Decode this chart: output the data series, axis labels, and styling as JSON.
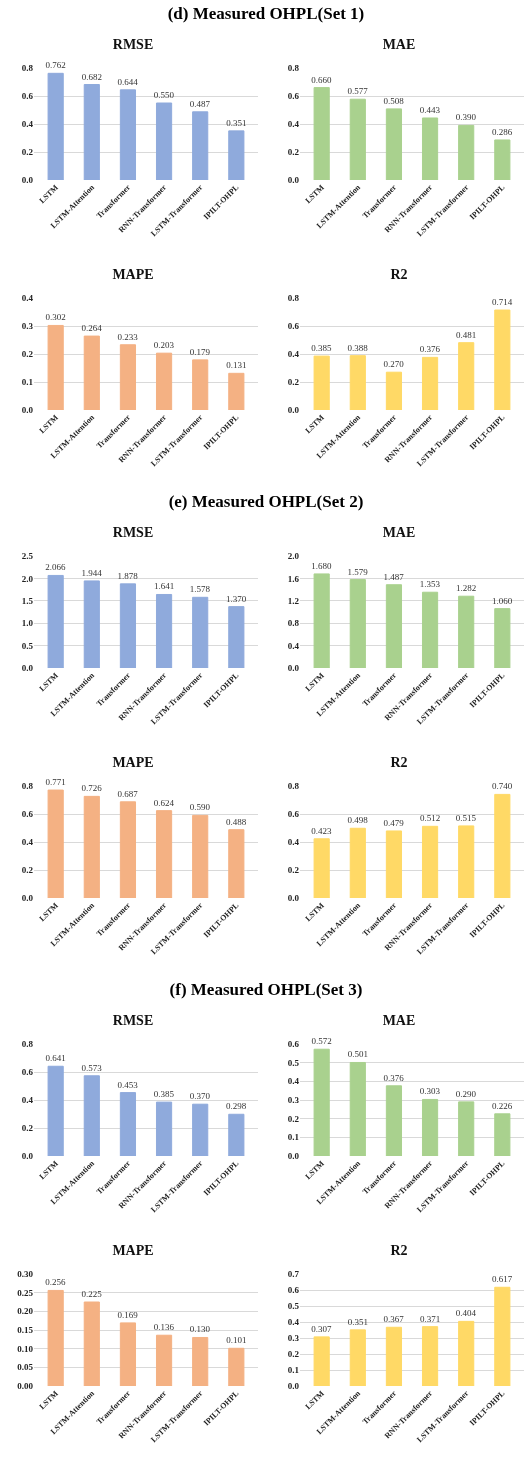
{
  "chart_data": [
    {
      "type": "other",
      "title": "(d) Measured OHPL(Set 1)"
    },
    {
      "type": "bar",
      "title": "RMSE",
      "categories": [
        "LSTM",
        "LSTM-Attention",
        "Transformer",
        "RNN-Transformer",
        "LSTM-Transformer",
        "IPILT-OHPL"
      ],
      "values": [
        0.762,
        0.682,
        0.644,
        0.55,
        0.487,
        0.351
      ],
      "value_labels": [
        "0.762",
        "0.682",
        "0.644",
        "0.550",
        "0.487",
        "0.351"
      ],
      "color": "#8faadc",
      "ylim": [
        0,
        0.8
      ],
      "yticks": [
        {
          "value": 0,
          "label": "0.0"
        },
        0.2,
        0.4,
        0.6,
        0.8
      ],
      "grid": "y"
    },
    {
      "type": "bar",
      "title": "MAE",
      "categories": [
        "LSTM",
        "LSTM-Attention",
        "Transformer",
        "RNN-Transformer",
        "LSTM-Transformer",
        "IPILT-OHPL"
      ],
      "values": [
        0.66,
        0.577,
        0.508,
        0.443,
        0.39,
        0.286
      ],
      "value_labels": [
        "0.660",
        "0.577",
        "0.508",
        "0.443",
        "0.390",
        "0.286"
      ],
      "color": "#a9d18e",
      "ylim": [
        0,
        0.8
      ],
      "yticks": [
        {
          "value": 0,
          "label": "0.0"
        },
        0.2,
        0.4,
        0.6,
        0.8
      ],
      "grid": "y"
    },
    {
      "type": "bar",
      "title": "MAPE",
      "categories": [
        "LSTM",
        "LSTM-Attention",
        "Transformer",
        "RNN-Transformer",
        "LSTM-Transformer",
        "IPILT-OHPL"
      ],
      "values": [
        0.302,
        0.264,
        0.233,
        0.203,
        0.179,
        0.131
      ],
      "value_labels": [
        "0.302",
        "0.264",
        "0.233",
        "0.203",
        "0.179",
        "0.131"
      ],
      "color": "#f4b183",
      "ylim": [
        0,
        0.4
      ],
      "yticks": [
        {
          "value": 0,
          "label": "0.0"
        },
        0.1,
        0.2,
        0.3,
        0.4
      ],
      "grid": "y"
    },
    {
      "type": "bar",
      "title": "R2",
      "categories": [
        "LSTM",
        "LSTM-Attention",
        "Transformer",
        "RNN-Transformer",
        "LSTM-Transformer",
        "IPILT-OHPL"
      ],
      "values": [
        0.385,
        0.388,
        0.27,
        0.376,
        0.481,
        0.714
      ],
      "value_labels": [
        "0.385",
        "0.388",
        "0.270",
        "0.376",
        "0.481",
        "0.714"
      ],
      "color": "#ffd966",
      "ylim": [
        0,
        0.8
      ],
      "yticks": [
        {
          "value": 0,
          "label": "0.0"
        },
        0.2,
        0.4,
        0.6,
        0.8
      ],
      "grid": "y"
    },
    {
      "type": "other",
      "title": "(e) Measured OHPL(Set 2)"
    },
    {
      "type": "bar",
      "title": "RMSE",
      "categories": [
        "LSTM",
        "LSTM-Attention",
        "Transformer",
        "RNN-Transformer",
        "LSTM-Transformer",
        "IPILT-OHPL"
      ],
      "values": [
        2.066,
        1.944,
        1.878,
        1.641,
        1.578,
        1.37
      ],
      "value_labels": [
        "2.066",
        "1.944",
        "1.878",
        "1.641",
        "1.578",
        "1.370"
      ],
      "color": "#8faadc",
      "ylim": [
        0,
        2.5
      ],
      "yticks": [
        {
          "value": 0,
          "label": "0.0"
        },
        0.5,
        {
          "value": 1,
          "label": "1.0"
        },
        1.5,
        {
          "value": 2,
          "label": "2.0"
        },
        2.5
      ],
      "grid": "y"
    },
    {
      "type": "bar",
      "title": "MAE",
      "categories": [
        "LSTM",
        "LSTM-Attention",
        "Transformer",
        "RNN-Transformer",
        "LSTM-Transformer",
        "IPILT-OHPL"
      ],
      "values": [
        1.68,
        1.579,
        1.487,
        1.353,
        1.282,
        1.06
      ],
      "value_labels": [
        "1.680",
        "1.579",
        "1.487",
        "1.353",
        "1.282",
        "1.060"
      ],
      "color": "#a9d18e",
      "ylim": [
        0,
        2.0
      ],
      "yticks": [
        {
          "value": 0,
          "label": "0.0"
        },
        0.4,
        0.8,
        1.2,
        1.6,
        {
          "value": 2,
          "label": "2.0"
        }
      ],
      "grid": "y"
    },
    {
      "type": "bar",
      "title": "MAPE",
      "categories": [
        "LSTM",
        "LSTM-Attention",
        "Transformer",
        "RNN-Transformer",
        "LSTM-Transformer",
        "IPILT-OHPL"
      ],
      "values": [
        0.771,
        0.726,
        0.687,
        0.624,
        0.59,
        0.488
      ],
      "value_labels": [
        "0.771",
        "0.726",
        "0.687",
        "0.624",
        "0.590",
        "0.488"
      ],
      "color": "#f4b183",
      "ylim": [
        0,
        0.8
      ],
      "yticks": [
        {
          "value": 0,
          "label": "0.0"
        },
        0.2,
        0.4,
        0.6,
        0.8
      ],
      "grid": "y"
    },
    {
      "type": "bar",
      "title": "R2",
      "categories": [
        "LSTM",
        "LSTM-Attention",
        "Transformer",
        "RNN-Transformer",
        "LSTM-Transformer",
        "IPILT-OHPL"
      ],
      "values": [
        0.423,
        0.498,
        0.479,
        0.512,
        0.515,
        0.74
      ],
      "value_labels": [
        "0.423",
        "0.498",
        "0.479",
        "0.512",
        "0.515",
        "0.740"
      ],
      "color": "#ffd966",
      "ylim": [
        0,
        0.8
      ],
      "yticks": [
        {
          "value": 0,
          "label": "0.0"
        },
        0.2,
        0.4,
        0.6,
        0.8
      ],
      "grid": "y"
    },
    {
      "type": "other",
      "title": "(f) Measured OHPL(Set 3)"
    },
    {
      "type": "bar",
      "title": "RMSE",
      "categories": [
        "LSTM",
        "LSTM-Attention",
        "Transformer",
        "RNN-Transformer",
        "LSTM-Transformer",
        "IPILT-OHPL"
      ],
      "values": [
        0.641,
        0.573,
        0.453,
        0.385,
        0.37,
        0.298
      ],
      "value_labels": [
        "0.641",
        "0.573",
        "0.453",
        "0.385",
        "0.370",
        "0.298"
      ],
      "color": "#8faadc",
      "ylim": [
        0,
        0.8
      ],
      "yticks": [
        {
          "value": 0,
          "label": "0.0"
        },
        0.2,
        0.4,
        0.6,
        0.8
      ],
      "grid": "y"
    },
    {
      "type": "bar",
      "title": "MAE",
      "categories": [
        "LSTM",
        "LSTM-Attention",
        "Transformer",
        "RNN-Transformer",
        "LSTM-Transformer",
        "IPILT-OHPL"
      ],
      "values": [
        0.572,
        0.501,
        0.376,
        0.303,
        0.29,
        0.226
      ],
      "value_labels": [
        "0.572",
        "0.501",
        "0.376",
        "0.303",
        "0.290",
        "0.226"
      ],
      "color": "#a9d18e",
      "ylim": [
        0,
        0.6
      ],
      "yticks": [
        {
          "value": 0,
          "label": "0.0"
        },
        0.1,
        0.2,
        0.3,
        0.4,
        0.5,
        0.6
      ],
      "grid": "y"
    },
    {
      "type": "bar",
      "title": "MAPE",
      "categories": [
        "LSTM",
        "LSTM-Attention",
        "Transformer",
        "RNN-Transformer",
        "LSTM-Transformer",
        "IPILT-OHPL"
      ],
      "values": [
        0.256,
        0.225,
        0.169,
        0.136,
        0.13,
        0.101
      ],
      "value_labels": [
        "0.256",
        "0.225",
        "0.169",
        "0.136",
        "0.130",
        "0.101"
      ],
      "color": "#f4b183",
      "ylim": [
        0,
        0.3
      ],
      "yticks": [
        {
          "value": 0,
          "label": "0.00"
        },
        0.05,
        {
          "value": 0.1,
          "label": "0.10"
        },
        0.15,
        {
          "value": 0.2,
          "label": "0.20"
        },
        0.25,
        {
          "value": 0.3,
          "label": "0.30"
        }
      ],
      "grid": "y"
    },
    {
      "type": "bar",
      "title": "R2",
      "categories": [
        "LSTM",
        "LSTM-Attention",
        "Transformer",
        "RNN-Transformer",
        "LSTM-Transformer",
        "IPILT-OHPL"
      ],
      "values": [
        0.307,
        0.351,
        0.367,
        0.371,
        0.404,
        0.617
      ],
      "value_labels": [
        "0.307",
        "0.351",
        "0.367",
        "0.371",
        "0.404",
        "0.617"
      ],
      "color": "#ffd966",
      "ylim": [
        0,
        0.7
      ],
      "yticks": [
        {
          "value": 0,
          "label": "0.0"
        },
        0.1,
        0.2,
        0.3,
        0.4,
        0.5,
        0.6,
        0.7
      ],
      "grid": "y"
    }
  ]
}
